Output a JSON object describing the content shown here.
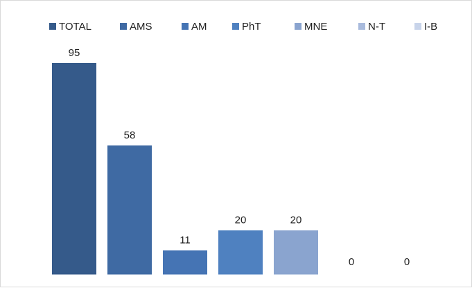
{
  "chart_data": {
    "type": "bar",
    "categories": [
      "TOTAL",
      "AMS",
      "AM",
      "PhT",
      "MNE",
      "N-T",
      "I-B"
    ],
    "values": [
      95,
      58,
      11,
      20,
      20,
      0,
      0
    ],
    "legend_position": "top",
    "grid": false,
    "ylim": [
      0,
      100
    ],
    "data_labels": true,
    "colors": [
      "#355a8a",
      "#3f6aa3",
      "#4574b4",
      "#4f81c0",
      "#8aa4cf",
      "#a9bbdd",
      "#c8d4ea"
    ]
  }
}
